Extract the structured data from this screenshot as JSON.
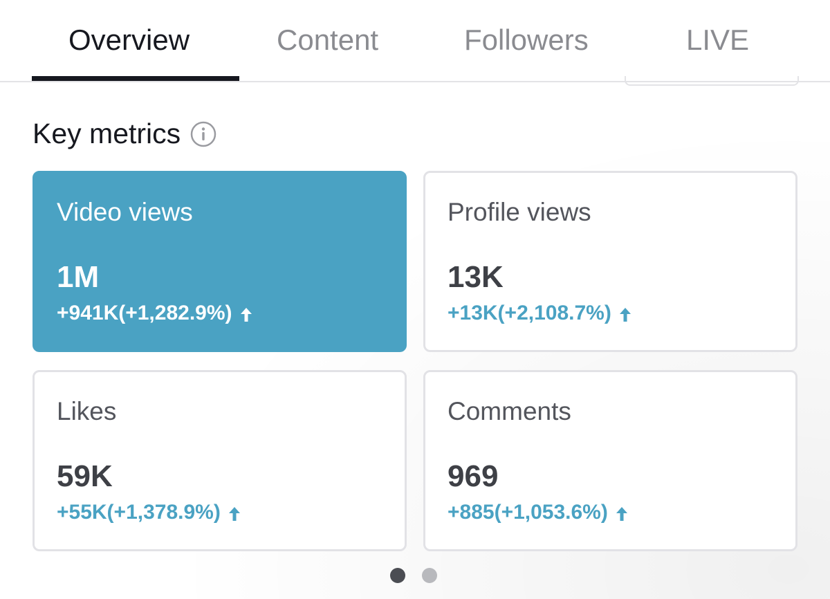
{
  "tabs": [
    {
      "label": "Overview",
      "active": true
    },
    {
      "label": "Content",
      "active": false
    },
    {
      "label": "Followers",
      "active": false
    },
    {
      "label": "LIVE",
      "active": false
    }
  ],
  "section": {
    "title": "Key metrics",
    "icon": "info-icon"
  },
  "metrics": [
    {
      "label": "Video views",
      "value": "1M",
      "change": "+941K(+1,282.9%)",
      "trend_icon": "arrow-up-icon",
      "selected": true
    },
    {
      "label": "Profile views",
      "value": "13K",
      "change": "+13K(+2,108.7%)",
      "trend_icon": "arrow-up-icon",
      "selected": false
    },
    {
      "label": "Likes",
      "value": "59K",
      "change": "+55K(+1,378.9%)",
      "trend_icon": "arrow-up-icon",
      "selected": false
    },
    {
      "label": "Comments",
      "value": "969",
      "change": "+885(+1,053.6%)",
      "trend_icon": "arrow-up-icon",
      "selected": false
    }
  ],
  "pagination": {
    "pages": 2,
    "current": 1
  },
  "colors": {
    "accent": "#4aa2c3",
    "text_primary": "#16181f",
    "text_muted": "#8a8b90",
    "card_border": "#e2e2e6"
  }
}
